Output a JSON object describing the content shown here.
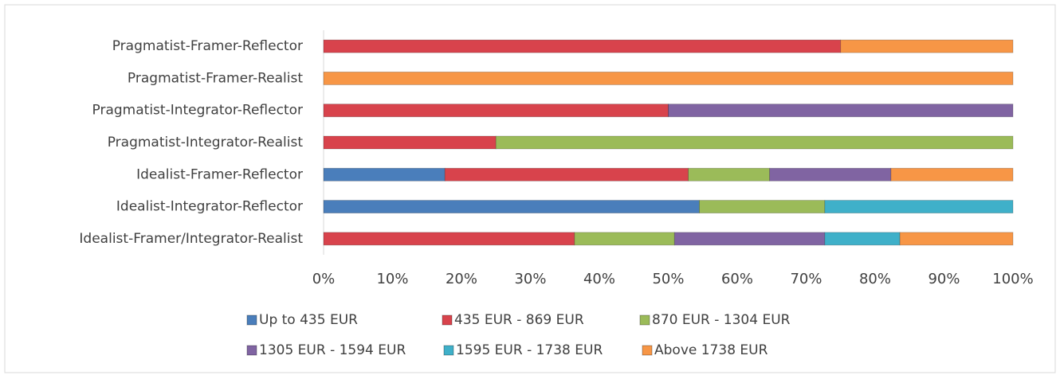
{
  "chart_data": {
    "type": "stacked-bar-horizontal",
    "categories": [
      "Pragmatist-Framer-Reflector",
      "Pragmatist-Framer-Realist",
      "Pragmatist-Integrator-Reflector",
      "Pragmatist-Integrator-Realist",
      "Idealist-Framer-Reflector",
      "Idealist-Integrator-Reflector",
      "Idealist-Framer/Integrator-Realist"
    ],
    "series": [
      {
        "name": "Up to 435 EUR",
        "color": "#4a7ebb",
        "values": [
          0,
          0,
          0,
          0,
          17.6,
          54.5,
          0
        ]
      },
      {
        "name": "435 EUR - 869 EUR",
        "color": "#d8434c",
        "values": [
          75,
          0,
          50,
          25,
          35.3,
          0,
          36.4
        ]
      },
      {
        "name": "870 EUR - 1304 EUR",
        "color": "#9bbb59",
        "values": [
          0,
          0,
          0,
          75,
          11.8,
          18.2,
          14.5
        ]
      },
      {
        "name": "1305 EUR - 1594 EUR",
        "color": "#8064a2",
        "values": [
          0,
          0,
          50,
          0,
          17.6,
          0,
          21.8
        ]
      },
      {
        "name": "1595 EUR - 1738 EUR",
        "color": "#3fb0c9",
        "values": [
          0,
          0,
          0,
          0,
          0,
          27.3,
          10.9
        ]
      },
      {
        "name": "Above 1738 EUR",
        "color": "#f79646",
        "values": [
          25,
          100,
          0,
          0,
          17.7,
          0,
          16.4
        ]
      }
    ],
    "xlim": [
      0,
      100
    ],
    "xticks": [
      {
        "value": 0,
        "label": "0%"
      },
      {
        "value": 10,
        "label": "10%"
      },
      {
        "value": 20,
        "label": "20%"
      },
      {
        "value": 30,
        "label": "30%"
      },
      {
        "value": 40,
        "label": "40%"
      },
      {
        "value": 50,
        "label": "50%"
      },
      {
        "value": 60,
        "label": "60%"
      },
      {
        "value": 70,
        "label": "70%"
      },
      {
        "value": 80,
        "label": "80%"
      },
      {
        "value": 90,
        "label": "90%"
      },
      {
        "value": 100,
        "label": "100%"
      }
    ],
    "legend": "bottom"
  }
}
